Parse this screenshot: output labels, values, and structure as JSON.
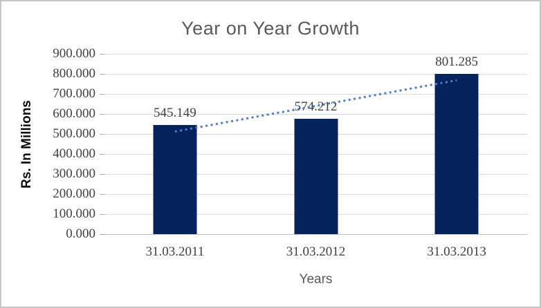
{
  "chart_data": {
    "type": "bar",
    "title": "Year on Year Growth",
    "xlabel": "Years",
    "ylabel": "Rs. In Millions",
    "categories": [
      "31.03.2011",
      "31.03.2012",
      "31.03.2013"
    ],
    "values": [
      545.149,
      574.212,
      801.285
    ],
    "data_labels": [
      "545.149",
      "574.212",
      "801.285"
    ],
    "y_tick_labels": [
      "900.000",
      "800.000",
      "700.000",
      "600.000",
      "500.000",
      "400.000",
      "300.000",
      "200.000",
      "100.000",
      "0.000"
    ],
    "ylim": [
      0,
      900
    ],
    "y_step": 100,
    "grid": true,
    "legend": "none",
    "trendline": {
      "type": "linear",
      "style": "dotted",
      "start_value": 512.1,
      "end_value": 768.3
    },
    "colors": {
      "bar": "#07235e",
      "trendline": "#4c7ec4",
      "gridline": "#d9d9d9",
      "axis_line": "#bfbfbf",
      "title_text": "#595959",
      "tick_label_text": "#404040",
      "y_axis_title_text": "#0a0a0a"
    }
  }
}
